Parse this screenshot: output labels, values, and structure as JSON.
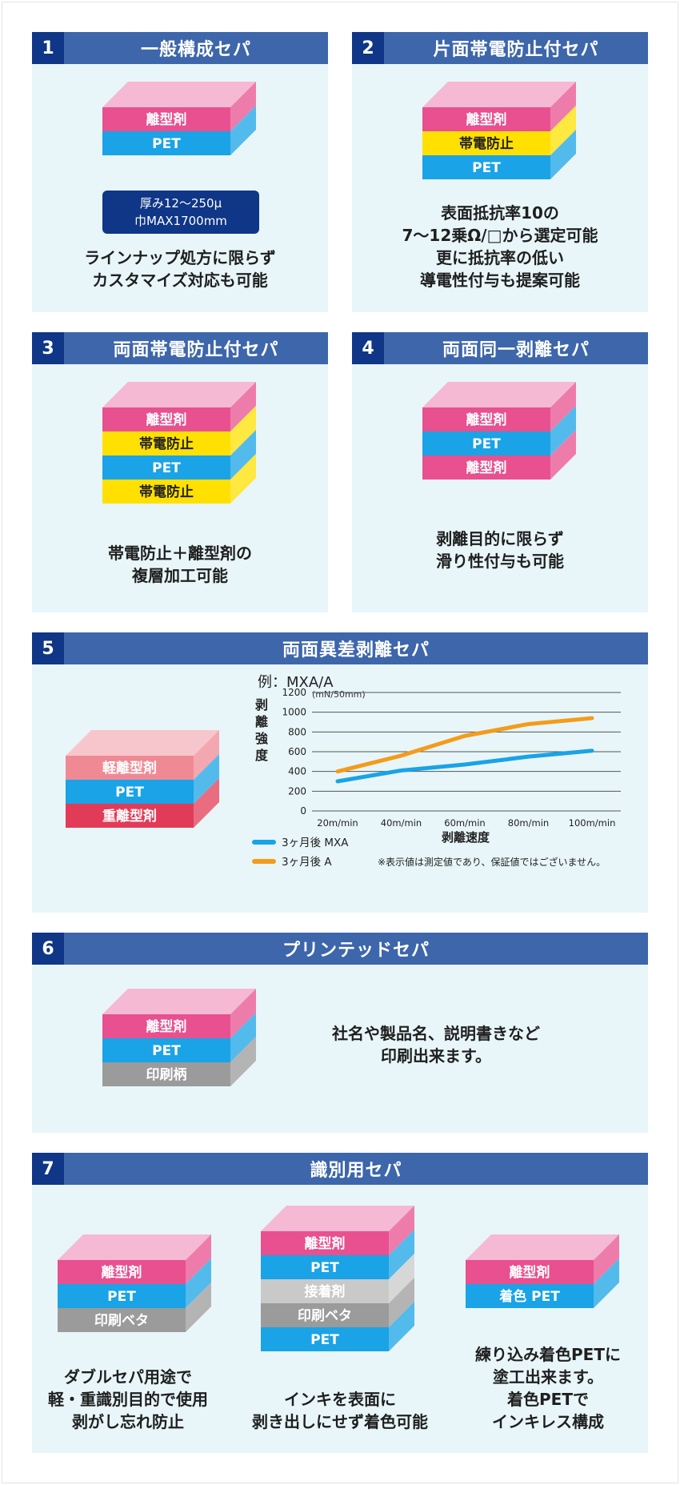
{
  "sections": [
    {
      "num": "1",
      "title": "一般構成セパ",
      "layers": [
        {
          "label": "離型剤",
          "color": "#e8508f"
        },
        {
          "label": "PET",
          "color": "#1aa3e6"
        }
      ],
      "spec": [
        "厚み12〜250μ",
        "巾MAX1700mm"
      ],
      "caption": [
        "ラインナップ処方に限らず",
        "カスタマイズ対応も可能"
      ]
    },
    {
      "num": "2",
      "title": "片面帯電防止付セパ",
      "layers": [
        {
          "label": "離型剤",
          "color": "#e8508f"
        },
        {
          "label": "帯電防止",
          "color": "#ffe000"
        },
        {
          "label": "PET",
          "color": "#1aa3e6"
        }
      ],
      "caption": [
        "表面抵抗率10の",
        "7〜12乗Ω/□から選定可能",
        "更に抵抗率の低い",
        "導電性付与も提案可能"
      ]
    },
    {
      "num": "3",
      "title": "両面帯電防止付セパ",
      "layers": [
        {
          "label": "離型剤",
          "color": "#e8508f"
        },
        {
          "label": "帯電防止",
          "color": "#ffe000"
        },
        {
          "label": "PET",
          "color": "#1aa3e6"
        },
        {
          "label": "帯電防止",
          "color": "#ffe000"
        }
      ],
      "caption": [
        "帯電防止＋離型剤の",
        "複層加工可能"
      ]
    },
    {
      "num": "4",
      "title": "両面同一剥離セパ",
      "layers": [
        {
          "label": "離型剤",
          "color": "#e8508f"
        },
        {
          "label": "PET",
          "color": "#1aa3e6"
        },
        {
          "label": "離型剤",
          "color": "#e8508f"
        }
      ],
      "caption": [
        "剥離目的に限らず",
        "滑り性付与も可能"
      ]
    },
    {
      "num": "5",
      "title": "両面異差剥離セパ",
      "layers": [
        {
          "label": "軽離型剤",
          "color": "#ef8a95"
        },
        {
          "label": "PET",
          "color": "#1aa3e6"
        },
        {
          "label": "重離型剤",
          "color": "#e23b57"
        }
      ]
    },
    {
      "num": "6",
      "title": "プリンテッドセパ",
      "layers": [
        {
          "label": "離型剤",
          "color": "#e8508f"
        },
        {
          "label": "PET",
          "color": "#1aa3e6"
        },
        {
          "label": "印刷柄",
          "color": "#9b9b9b"
        }
      ],
      "caption": [
        "社名や製品名、説明書きなど",
        "印刷出来ます。"
      ]
    },
    {
      "num": "7",
      "title": "識別用セパ",
      "stacks": [
        {
          "layers": [
            {
              "label": "離型剤",
              "color": "#e8508f"
            },
            {
              "label": "PET",
              "color": "#1aa3e6"
            },
            {
              "label": "印刷ベタ",
              "color": "#9b9b9b"
            }
          ],
          "caption": [
            "ダブルセパ用途で",
            "軽・重識別目的で使用",
            "剥がし忘れ防止"
          ]
        },
        {
          "layers": [
            {
              "label": "離型剤",
              "color": "#e8508f"
            },
            {
              "label": "PET",
              "color": "#1aa3e6"
            },
            {
              "label": "接着剤",
              "color": "#c9c9c9"
            },
            {
              "label": "印刷ベタ",
              "color": "#9b9b9b"
            },
            {
              "label": "PET",
              "color": "#1aa3e6"
            }
          ],
          "caption": [
            "インキを表面に",
            "剥き出しにせず着色可能"
          ]
        },
        {
          "layers": [
            {
              "label": "離型剤",
              "color": "#e8508f"
            },
            {
              "label": "着色 PET",
              "color": "#1aa3e6"
            }
          ],
          "caption": [
            "練り込み着色PETに",
            "塗工出来ます。",
            "着色PETで",
            "インキレス構成"
          ]
        }
      ]
    }
  ],
  "chart_data": {
    "type": "line",
    "title": "例：MXA/A",
    "unit": "(mN/50mm)",
    "ylabel": "剥離強度",
    "xlabel": "剥離速度",
    "categories": [
      "20m/min",
      "40m/min",
      "60m/min",
      "80m/min",
      "100m/min"
    ],
    "yticks": [
      0,
      200,
      400,
      600,
      800,
      1000,
      1200
    ],
    "ylim": [
      0,
      1200
    ],
    "grid": true,
    "series": [
      {
        "name": "3ヶ月後 MXA",
        "color": "#1aa3e6",
        "values": [
          300,
          410,
          470,
          550,
          610
        ]
      },
      {
        "name": "3ヶ月後 A",
        "color": "#f39c1b",
        "values": [
          400,
          560,
          760,
          880,
          940
        ]
      }
    ],
    "note": "※表示値は測定値であり、保証値ではございません。"
  },
  "colors": {
    "header": "#3d66ab",
    "header_num": "#0f3687",
    "card_bg": "#e8f6f9",
    "top_pink": "#f5b9d4"
  }
}
